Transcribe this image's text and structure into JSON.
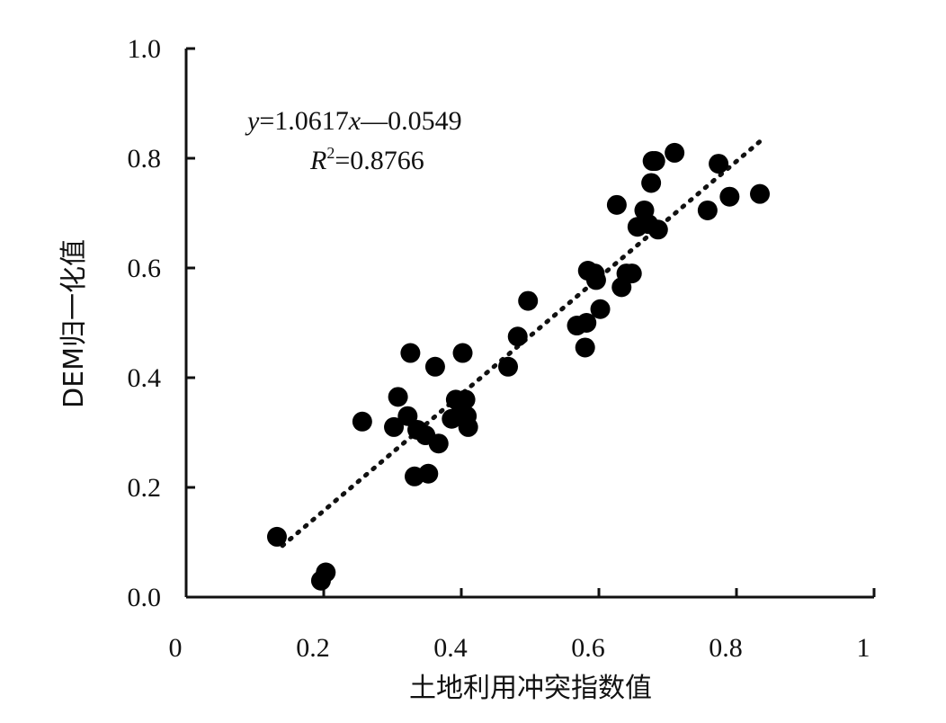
{
  "chart_data": {
    "type": "scatter",
    "xlabel": "土地利用冲突指数值",
    "ylabel": "DEM归一化值",
    "xlim": [
      0,
      1
    ],
    "ylim": [
      0,
      1
    ],
    "x_ticks": [
      "0",
      "0.2",
      "0.4",
      "0.6",
      "0.8",
      "1"
    ],
    "x_tick_values": [
      0,
      0.2,
      0.4,
      0.6,
      0.8,
      1
    ],
    "y_ticks": [
      "0.0",
      "0.2",
      "0.4",
      "0.6",
      "0.8",
      "1.0"
    ],
    "y_tick_values": [
      0,
      0.2,
      0.4,
      0.6,
      0.8,
      1.0
    ],
    "grid": false,
    "annotations": {
      "equation": {
        "y": "y",
        "mid": "=1.0617",
        "x": "x",
        "rest": "—0.0549"
      },
      "r2": {
        "r": "R",
        "sup": "2",
        "rest": "=0.8766"
      }
    },
    "trendline": {
      "slope": 1.0617,
      "intercept": -0.0549,
      "x_range": [
        0.14,
        0.84
      ],
      "style": "dotted"
    },
    "points": [
      {
        "x": 0.132,
        "y": 0.11
      },
      {
        "x": 0.196,
        "y": 0.03
      },
      {
        "x": 0.203,
        "y": 0.045
      },
      {
        "x": 0.256,
        "y": 0.32
      },
      {
        "x": 0.302,
        "y": 0.31
      },
      {
        "x": 0.308,
        "y": 0.365
      },
      {
        "x": 0.322,
        "y": 0.33
      },
      {
        "x": 0.326,
        "y": 0.445
      },
      {
        "x": 0.332,
        "y": 0.22
      },
      {
        "x": 0.336,
        "y": 0.305
      },
      {
        "x": 0.348,
        "y": 0.295
      },
      {
        "x": 0.352,
        "y": 0.225
      },
      {
        "x": 0.362,
        "y": 0.42
      },
      {
        "x": 0.367,
        "y": 0.28
      },
      {
        "x": 0.386,
        "y": 0.325
      },
      {
        "x": 0.392,
        "y": 0.36
      },
      {
        "x": 0.396,
        "y": 0.33
      },
      {
        "x": 0.402,
        "y": 0.445
      },
      {
        "x": 0.406,
        "y": 0.36
      },
      {
        "x": 0.408,
        "y": 0.33
      },
      {
        "x": 0.41,
        "y": 0.31
      },
      {
        "x": 0.468,
        "y": 0.42
      },
      {
        "x": 0.482,
        "y": 0.475
      },
      {
        "x": 0.497,
        "y": 0.54
      },
      {
        "x": 0.568,
        "y": 0.495
      },
      {
        "x": 0.58,
        "y": 0.455
      },
      {
        "x": 0.582,
        "y": 0.5
      },
      {
        "x": 0.584,
        "y": 0.595
      },
      {
        "x": 0.594,
        "y": 0.59
      },
      {
        "x": 0.596,
        "y": 0.578
      },
      {
        "x": 0.602,
        "y": 0.525
      },
      {
        "x": 0.626,
        "y": 0.715
      },
      {
        "x": 0.633,
        "y": 0.565
      },
      {
        "x": 0.64,
        "y": 0.59
      },
      {
        "x": 0.648,
        "y": 0.59
      },
      {
        "x": 0.656,
        "y": 0.675
      },
      {
        "x": 0.666,
        "y": 0.705
      },
      {
        "x": 0.672,
        "y": 0.68
      },
      {
        "x": 0.676,
        "y": 0.755
      },
      {
        "x": 0.678,
        "y": 0.795
      },
      {
        "x": 0.682,
        "y": 0.795
      },
      {
        "x": 0.686,
        "y": 0.67
      },
      {
        "x": 0.71,
        "y": 0.81
      },
      {
        "x": 0.758,
        "y": 0.705
      },
      {
        "x": 0.774,
        "y": 0.79
      },
      {
        "x": 0.79,
        "y": 0.73
      },
      {
        "x": 0.834,
        "y": 0.735
      }
    ]
  }
}
